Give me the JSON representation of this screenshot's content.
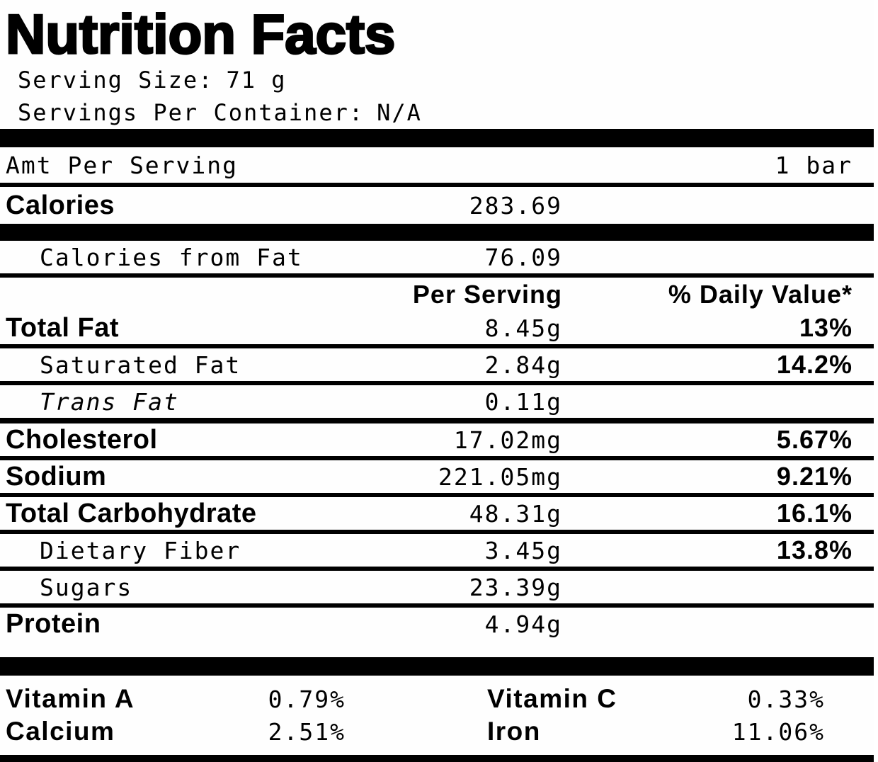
{
  "title": "Nutrition Facts",
  "serving": {
    "size_label": "Serving Size:",
    "size_value": "71 g",
    "per_container_label": "Servings Per Container:",
    "per_container_value": "N/A"
  },
  "header": {
    "amt_per_serving": "Amt Per Serving",
    "amount_unit": "1 bar",
    "calories_label": "Calories",
    "calories_value": "283.69",
    "calories_from_fat_label": "Calories from Fat",
    "calories_from_fat_value": "76.09",
    "per_serving_col": "Per Serving",
    "daily_value_col": "% Daily Value*"
  },
  "nutrients": [
    {
      "label": "Total Fat",
      "value": "8.45g",
      "dv": "13%"
    },
    {
      "label": "Saturated Fat",
      "value": "2.84g",
      "dv": "14.2%"
    },
    {
      "label": "Trans Fat",
      "value": "0.11g",
      "dv": ""
    },
    {
      "label": "Cholesterol",
      "value": "17.02mg",
      "dv": "5.67%"
    },
    {
      "label": "Sodium",
      "value": "221.05mg",
      "dv": "9.21%"
    },
    {
      "label": "Total Carbohydrate",
      "value": "48.31g",
      "dv": "16.1%"
    },
    {
      "label": "Dietary Fiber",
      "value": "3.45g",
      "dv": "13.8%"
    },
    {
      "label": "Sugars",
      "value": "23.39g",
      "dv": ""
    },
    {
      "label": "Protein",
      "value": "4.94g",
      "dv": ""
    }
  ],
  "micronutrients": [
    {
      "label": "Vitamin A",
      "value": "0.79%"
    },
    {
      "label": "Vitamin C",
      "value": "0.33%"
    },
    {
      "label": "Calcium",
      "value": "2.51%"
    },
    {
      "label": "Iron",
      "value": "11.06%"
    }
  ],
  "colors": {
    "text": "#000000",
    "background": "#ffffff"
  }
}
